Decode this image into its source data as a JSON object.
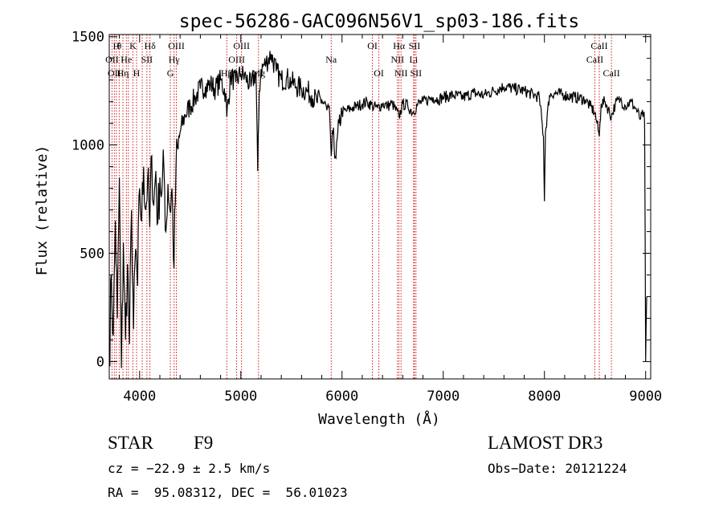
{
  "chart_data": {
    "type": "line",
    "title": "spec-56286-GAC096N56V1_sp03-186.fits",
    "xlabel": "Wavelength (Å)",
    "ylabel": "Flux (relative)",
    "xlim": [
      3700,
      9050
    ],
    "ylim": [
      -80,
      1510
    ],
    "x_ticks": [
      4000,
      5000,
      6000,
      7000,
      8000,
      9000
    ],
    "y_ticks": [
      0,
      500,
      1000,
      1500
    ],
    "grid": false,
    "line_color": "#000000",
    "marker_color": "#cc0000",
    "series": [
      {
        "x": [
          3700,
          3720,
          3740,
          3760,
          3780,
          3800,
          3820,
          3840,
          3860,
          3880,
          3900,
          3920,
          3940,
          3960,
          3980,
          4000,
          4020,
          4040,
          4060,
          4080,
          4100,
          4120,
          4140,
          4160,
          4180,
          4200,
          4220,
          4240,
          4260,
          4280,
          4300,
          4320,
          4340,
          4360,
          4380,
          4400,
          4450,
          4500,
          4550,
          4600,
          4650,
          4700,
          4750,
          4800,
          4850,
          4861,
          4900,
          4950,
          5000,
          5050,
          5100,
          5150,
          5167,
          5183,
          5200,
          5250,
          5300,
          5350,
          5400,
          5450,
          5500,
          5550,
          5600,
          5650,
          5700,
          5750,
          5800,
          5850,
          5880,
          5893,
          5910,
          5940,
          5970,
          6000,
          6050,
          6100,
          6150,
          6200,
          6250,
          6300,
          6350,
          6400,
          6450,
          6500,
          6563,
          6600,
          6650,
          6700,
          6750,
          6800,
          6850,
          6900,
          6950,
          7000,
          7100,
          7200,
          7300,
          7400,
          7500,
          7600,
          7700,
          7800,
          7900,
          7950,
          7990,
          8000,
          8010,
          8050,
          8100,
          8200,
          8300,
          8400,
          8450,
          8498,
          8520,
          8542,
          8560,
          8600,
          8662,
          8700,
          8750,
          8800,
          8850,
          8900,
          8950,
          8980,
          8990,
          9000,
          9010
        ],
        "y": [
          -20,
          400,
          120,
          650,
          200,
          850,
          -30,
          550,
          100,
          450,
          80,
          700,
          150,
          520,
          350,
          800,
          650,
          900,
          700,
          850,
          620,
          950,
          720,
          880,
          640,
          850,
          780,
          900,
          600,
          820,
          700,
          800,
          430,
          900,
          980,
          1060,
          1140,
          1180,
          1220,
          1260,
          1270,
          1280,
          1260,
          1300,
          1240,
          1130,
          1320,
          1290,
          1330,
          1310,
          1270,
          1340,
          880,
          1250,
          1350,
          1380,
          1420,
          1340,
          1300,
          1310,
          1290,
          1270,
          1260,
          1250,
          1230,
          1200,
          1210,
          1160,
          1120,
          950,
          1050,
          940,
          1100,
          1150,
          1160,
          1170,
          1180,
          1190,
          1200,
          1180,
          1170,
          1190,
          1180,
          1190,
          1130,
          1190,
          1180,
          1150,
          1190,
          1200,
          1210,
          1220,
          1210,
          1220,
          1230,
          1220,
          1240,
          1230,
          1250,
          1270,
          1260,
          1250,
          1230,
          1220,
          1040,
          740,
          1060,
          1230,
          1240,
          1230,
          1220,
          1210,
          1180,
          1150,
          1100,
          1040,
          1190,
          1200,
          1130,
          1190,
          1210,
          1180,
          1200,
          1170,
          1120,
          1150,
          1100,
          0,
          300
        ]
      }
    ],
    "lines": [
      {
        "x": 3727,
        "label": "OII",
        "row": 1
      },
      {
        "x": 3750,
        "label": "OII",
        "row": 2
      },
      {
        "x": 3770,
        "label": "H",
        "row": 0
      },
      {
        "x": 3798,
        "label": "θ",
        "row": 0
      },
      {
        "x": 3835,
        "label": "Hη",
        "row": 2
      },
      {
        "x": 3869,
        "label": "He",
        "row": 1
      },
      {
        "x": 3889,
        "label": "",
        "row": -1
      },
      {
        "x": 3934,
        "label": "K",
        "row": 0
      },
      {
        "x": 3970,
        "label": "H",
        "row": 2
      },
      {
        "x": 4026,
        "label": "",
        "row": -1
      },
      {
        "x": 4072,
        "label": "SII",
        "row": 1
      },
      {
        "x": 4102,
        "label": "Hδ",
        "row": 0
      },
      {
        "x": 4304,
        "label": "G",
        "row": 2
      },
      {
        "x": 4341,
        "label": "Hγ",
        "row": 1
      },
      {
        "x": 4363,
        "label": "OIII",
        "row": 0
      },
      {
        "x": 4861,
        "label": "Hβ",
        "row": 2
      },
      {
        "x": 4959,
        "label": "OIII",
        "row": 1
      },
      {
        "x": 5007,
        "label": "OIII",
        "row": 0
      },
      {
        "x": 5175,
        "label": "Mg",
        "row": 2
      },
      {
        "x": 5893,
        "label": "Na",
        "row": 1
      },
      {
        "x": 6300,
        "label": "OI",
        "row": 0
      },
      {
        "x": 6364,
        "label": "OI",
        "row": 2
      },
      {
        "x": 6548,
        "label": "NII",
        "row": 1
      },
      {
        "x": 6563,
        "label": "Hα",
        "row": 0
      },
      {
        "x": 6583,
        "label": "NII",
        "row": 2
      },
      {
        "x": 6707,
        "label": "Li",
        "row": 1
      },
      {
        "x": 6716,
        "label": "SII",
        "row": 0
      },
      {
        "x": 6731,
        "label": "SII",
        "row": 2
      },
      {
        "x": 8498,
        "label": "CaII",
        "row": 1
      },
      {
        "x": 8542,
        "label": "CaII",
        "row": 0
      },
      {
        "x": 8662,
        "label": "CaII",
        "row": 2
      }
    ]
  },
  "info": {
    "class": "STAR",
    "subclass": "F9",
    "survey": "LAMOST DR3",
    "cz": "cz = −22.9 ± 2.5 km/s",
    "obs_date": "Obs−Date: 20121224",
    "radec": "RA =  95.08312, DEC =  56.01023"
  }
}
